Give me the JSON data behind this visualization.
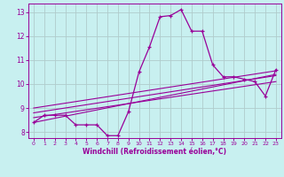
{
  "title": "",
  "xlabel": "Windchill (Refroidissement éolien,°C)",
  "ylabel": "",
  "bg_color": "#c8f0f0",
  "line_color": "#990099",
  "grid_color": "#b0cccc",
  "xlim": [
    -0.5,
    23.5
  ],
  "ylim": [
    7.75,
    13.35
  ],
  "xticks": [
    0,
    1,
    2,
    3,
    4,
    5,
    6,
    7,
    8,
    9,
    10,
    11,
    12,
    13,
    14,
    15,
    16,
    17,
    18,
    19,
    20,
    21,
    22,
    23
  ],
  "yticks": [
    8,
    9,
    10,
    11,
    12,
    13
  ],
  "main_x": [
    0,
    1,
    2,
    3,
    4,
    5,
    6,
    7,
    8,
    9,
    10,
    11,
    12,
    13,
    14,
    15,
    16,
    17,
    18,
    19,
    20,
    21,
    22,
    23
  ],
  "main_y": [
    8.4,
    8.7,
    8.7,
    8.7,
    8.3,
    8.3,
    8.3,
    7.85,
    7.85,
    8.85,
    10.5,
    11.55,
    12.8,
    12.85,
    13.1,
    12.2,
    12.2,
    10.8,
    10.3,
    10.3,
    10.2,
    10.1,
    9.5,
    10.6
  ],
  "line1_x": [
    0,
    23
  ],
  "line1_y": [
    8.4,
    10.4
  ],
  "line2_x": [
    0,
    23
  ],
  "line2_y": [
    8.6,
    10.1
  ],
  "line3_x": [
    0,
    23
  ],
  "line3_y": [
    8.8,
    10.35
  ],
  "line4_x": [
    0,
    23
  ],
  "line4_y": [
    9.0,
    10.55
  ]
}
